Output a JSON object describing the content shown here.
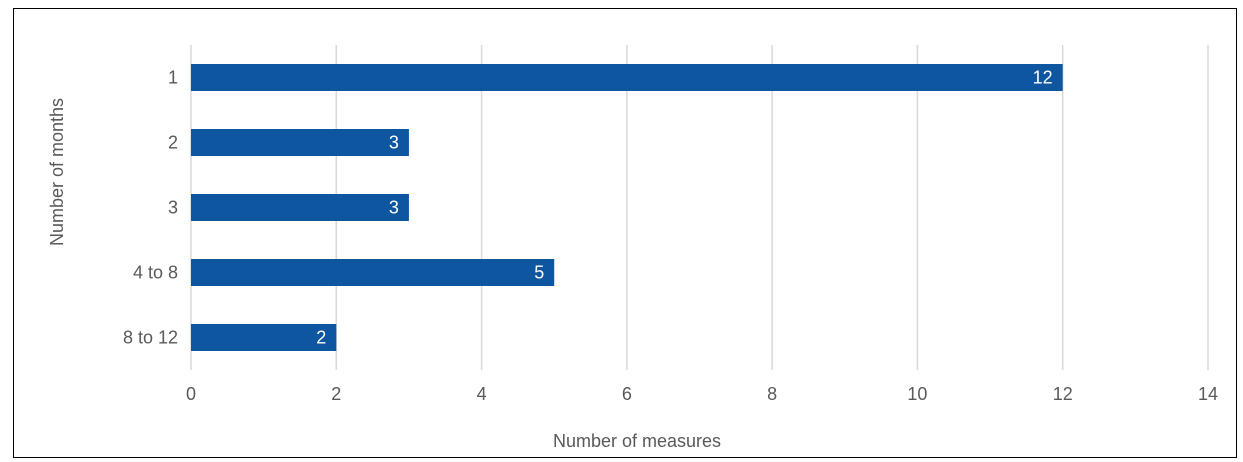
{
  "chart_data": {
    "type": "bar",
    "orientation": "horizontal",
    "categories": [
      "1",
      "2",
      "3",
      "4 to 8",
      "8 to 12"
    ],
    "values": [
      12,
      3,
      3,
      5,
      2
    ],
    "data_labels": [
      "12",
      "3",
      "3",
      "5",
      "2"
    ],
    "xlabel": "Number of measures",
    "ylabel": "Number of months",
    "xlim": [
      0,
      14
    ],
    "xticks": [
      "0",
      "2",
      "4",
      "6",
      "8",
      "10",
      "12",
      "14"
    ],
    "grid": "vertical",
    "bar_color": "#0e56a0",
    "grid_color": "#d9d9d9",
    "text_color": "#595959"
  }
}
